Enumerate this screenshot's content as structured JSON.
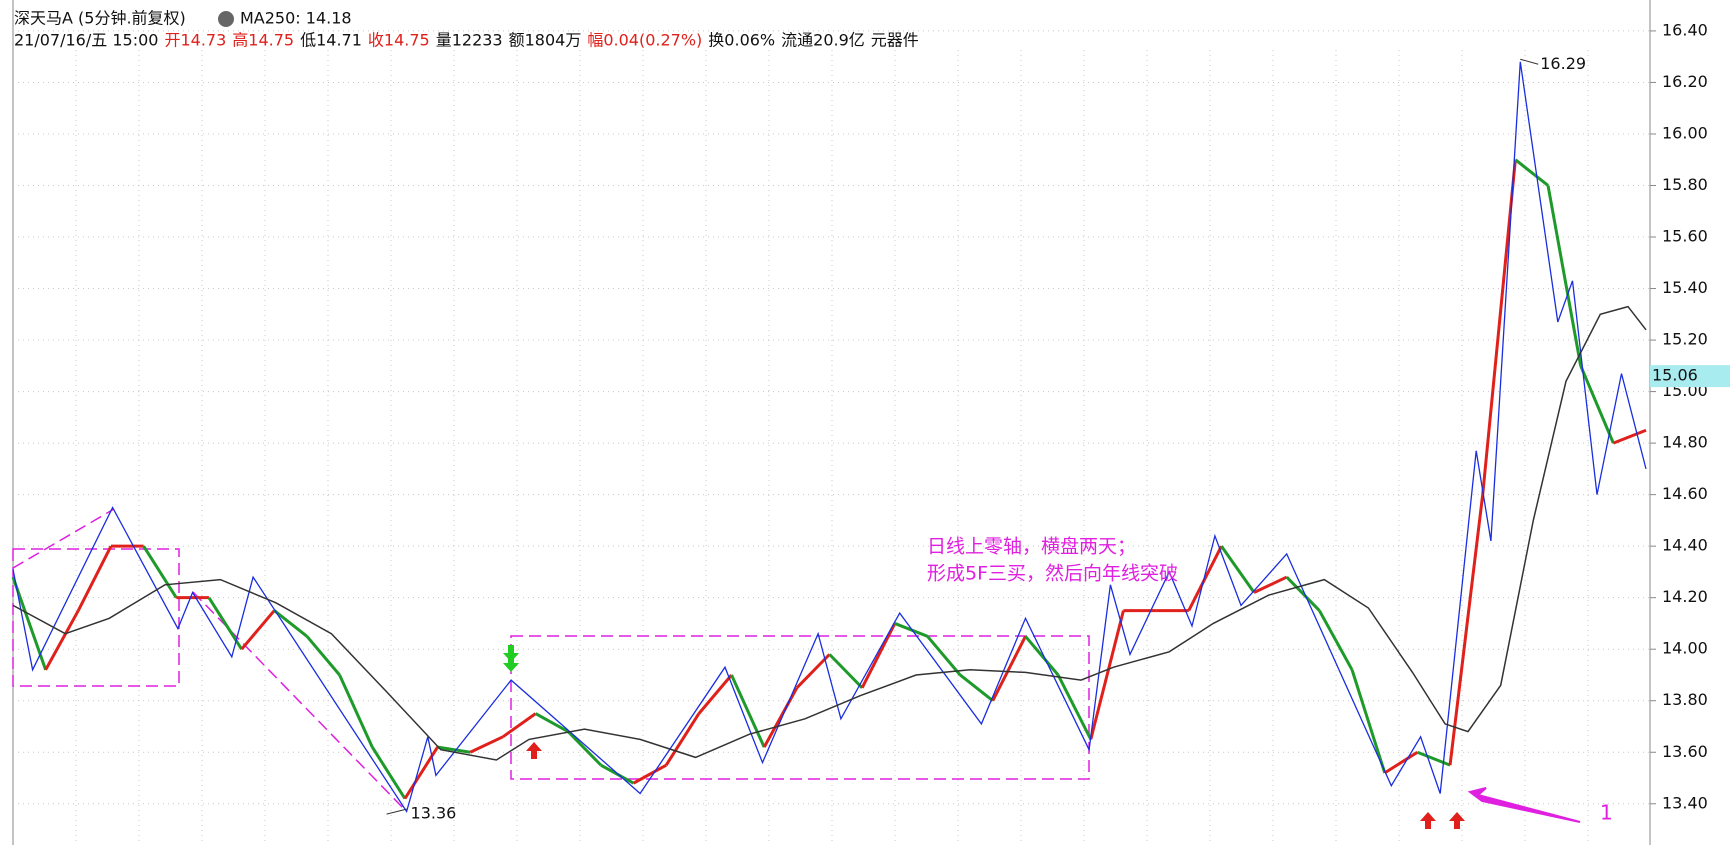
{
  "chart_data": {
    "type": "stock",
    "title": "深天马A (5分钟.前复权)",
    "indicator": "MA250: 14.18",
    "info": [
      {
        "text": "21/07/16/五 15:00",
        "color": "#111"
      },
      {
        "text": "开14.73",
        "color": "#e0201b"
      },
      {
        "text": "高14.75",
        "color": "#e0201b"
      },
      {
        "text": "低14.71",
        "color": "#111"
      },
      {
        "text": "收14.75",
        "color": "#e0201b"
      },
      {
        "text": "量12233",
        "color": "#111"
      },
      {
        "text": "额1804万",
        "color": "#111"
      },
      {
        "text": "幅0.04(0.27%)",
        "color": "#e0201b"
      },
      {
        "text": "换0.06%",
        "color": "#111"
      },
      {
        "text": "流通20.9亿",
        "color": "#111"
      },
      {
        "text": "元器件",
        "color": "#111"
      }
    ],
    "ylim": [
      13.24,
      16.52
    ],
    "xlim": [
      0,
      100
    ],
    "yticks": [
      {
        "value": 13.4,
        "label": "13.40"
      },
      {
        "value": 13.6,
        "label": "13.60"
      },
      {
        "value": 13.8,
        "label": "13.80"
      },
      {
        "value": 14.0,
        "label": "14.00"
      },
      {
        "value": 14.2,
        "label": "14.20"
      },
      {
        "value": 14.4,
        "label": "14.40"
      },
      {
        "value": 14.6,
        "label": "14.60"
      },
      {
        "value": 14.8,
        "label": "14.80"
      },
      {
        "value": 15.0,
        "label": "15.00"
      },
      {
        "value": 15.2,
        "label": "15.20"
      },
      {
        "value": 15.4,
        "label": "15.40"
      },
      {
        "value": 15.6,
        "label": "15.60"
      },
      {
        "value": 15.8,
        "label": "15.80"
      },
      {
        "value": 16.0,
        "label": "16.00"
      },
      {
        "value": 16.2,
        "label": "16.20"
      },
      {
        "value": 16.4,
        "label": "16.40"
      }
    ],
    "grid": true,
    "price": {
      "up_color": "#e0201b",
      "down_color": "#1e9a2a",
      "x": [
        0,
        2,
        4,
        6,
        8,
        10,
        12,
        14,
        16,
        18,
        20,
        22,
        24,
        26,
        28,
        30,
        32,
        34,
        36,
        38,
        40,
        42,
        44,
        46,
        48,
        50,
        52,
        54,
        56,
        58,
        60,
        62,
        64,
        66,
        68,
        70,
        72,
        74,
        76,
        78,
        80,
        82,
        84,
        86,
        88,
        90,
        92,
        94,
        96,
        98,
        100
      ],
      "values": [
        14.28,
        13.92,
        14.15,
        14.4,
        14.4,
        14.2,
        14.2,
        14.0,
        14.15,
        14.05,
        13.9,
        13.62,
        13.42,
        13.62,
        13.6,
        13.66,
        13.75,
        13.68,
        13.55,
        13.48,
        13.55,
        13.75,
        13.9,
        13.62,
        13.85,
        13.98,
        13.85,
        14.1,
        14.05,
        13.9,
        13.8,
        14.05,
        13.9,
        13.65,
        14.15,
        14.15,
        14.15,
        14.4,
        14.22,
        14.28,
        14.15,
        13.92,
        13.52,
        13.6,
        13.55,
        14.6,
        15.9,
        15.8,
        15.1,
        14.8,
        14.85
      ]
    },
    "series": [
      {
        "name": "zigzag",
        "color": "#1a2ee0",
        "x": [
          0,
          1.2,
          6.1,
          10.1,
          11.0,
          13.4,
          14.7,
          24.1,
          25.4,
          25.9,
          30.5,
          38.4,
          43.6,
          45.9,
          49.3,
          50.7,
          54.3,
          59.3,
          62.0,
          65.9,
          67.2,
          68.4,
          70.8,
          72.2,
          73.6,
          75.2,
          78.0,
          84.4,
          86.2,
          87.4,
          89.6,
          90.5,
          92.3,
          94.6,
          95.5,
          97.0,
          98.5,
          100
        ],
        "values": [
          14.31,
          13.92,
          14.55,
          14.08,
          14.22,
          13.97,
          14.28,
          13.37,
          13.66,
          13.51,
          13.88,
          13.44,
          13.93,
          13.56,
          14.06,
          13.73,
          14.14,
          13.71,
          14.12,
          13.61,
          14.25,
          13.98,
          14.3,
          14.09,
          14.44,
          14.17,
          14.37,
          13.47,
          13.66,
          13.44,
          14.77,
          14.42,
          16.28,
          15.27,
          15.43,
          14.6,
          15.07,
          14.7
        ]
      },
      {
        "name": "MA250",
        "color": "#333333",
        "x": [
          0,
          3.2,
          5.9,
          9.3,
          12.7,
          16.1,
          19.5,
          22.8,
          26.2,
          29.6,
          31.6,
          35.0,
          38.4,
          41.8,
          45.1,
          48.5,
          51.9,
          55.3,
          58.6,
          62.0,
          65.4,
          67.4,
          70.8,
          73.5,
          76.9,
          80.3,
          83.0,
          85.7,
          87.7,
          89.1,
          91.1,
          93.1,
          95.1,
          97.2,
          98.9,
          100
        ],
        "values": [
          14.17,
          14.06,
          14.12,
          14.25,
          14.27,
          14.18,
          14.06,
          13.84,
          13.61,
          13.57,
          13.65,
          13.69,
          13.65,
          13.58,
          13.67,
          13.73,
          13.82,
          13.9,
          13.92,
          13.91,
          13.88,
          13.93,
          13.99,
          14.1,
          14.21,
          14.27,
          14.16,
          13.91,
          13.71,
          13.68,
          13.86,
          14.5,
          15.04,
          15.3,
          15.33,
          15.24
        ]
      }
    ],
    "high_label": {
      "value": 16.29,
      "label": "16.29"
    },
    "low_label": {
      "value": 13.36,
      "label": "13.36"
    },
    "last_price": {
      "value": 15.06,
      "label": "15.06"
    },
    "annotations": [
      "日线上零轴，横盘两天；",
      "形成5F三买，然后向年线突破",
      "1"
    ]
  }
}
